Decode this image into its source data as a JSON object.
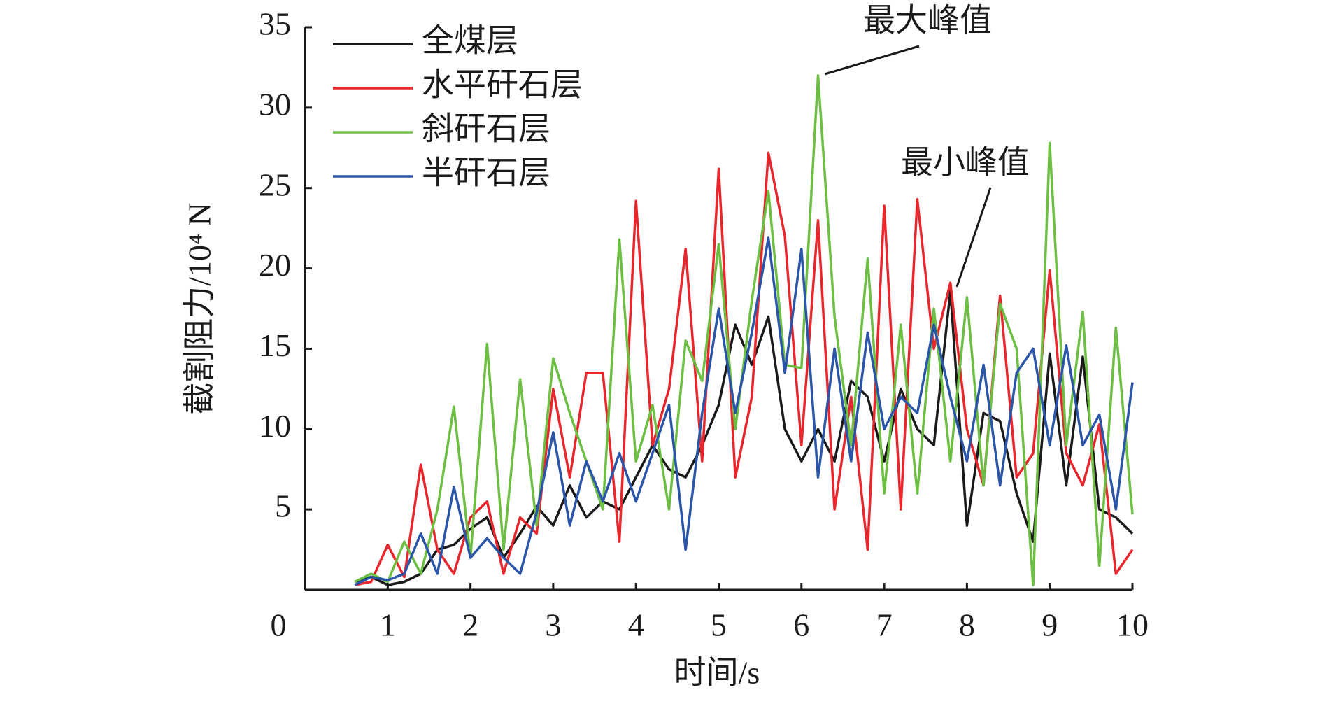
{
  "chart_data": {
    "type": "line",
    "xlabel": "时间/s",
    "ylabel": "截割阻力/10⁴ N",
    "xlim": [
      0,
      10
    ],
    "ylim": [
      0,
      35
    ],
    "xticks": [
      0,
      1,
      2,
      3,
      4,
      5,
      6,
      7,
      8,
      9,
      10
    ],
    "yticks": [
      5,
      10,
      15,
      20,
      25,
      30,
      35
    ],
    "legend": "upper left",
    "x": [
      0.6,
      0.8,
      1.0,
      1.2,
      1.4,
      1.6,
      1.8,
      2.0,
      2.2,
      2.4,
      2.6,
      2.8,
      3.0,
      3.2,
      3.4,
      3.6,
      3.8,
      4.0,
      4.2,
      4.4,
      4.6,
      4.8,
      5.0,
      5.2,
      5.4,
      5.6,
      5.8,
      6.0,
      6.2,
      6.4,
      6.6,
      6.8,
      7.0,
      7.2,
      7.4,
      7.6,
      7.8,
      8.0,
      8.2,
      8.4,
      8.6,
      8.8,
      9.0,
      9.2,
      9.4,
      9.6,
      9.8,
      10.0
    ],
    "series": [
      {
        "name": "全煤层",
        "color": "#1a1a1a",
        "values": [
          0.5,
          0.8,
          0.3,
          0.5,
          1.0,
          2.5,
          2.8,
          3.8,
          4.5,
          2.0,
          3.5,
          5.2,
          4.0,
          6.5,
          4.5,
          5.5,
          5.0,
          7.0,
          9.0,
          7.5,
          7.0,
          9.0,
          11.5,
          16.5,
          14.0,
          17.0,
          10.0,
          8.0,
          10.0,
          8.0,
          13.0,
          12.0,
          8.0,
          12.5,
          10.0,
          9.0,
          18.6,
          4.0,
          11.0,
          10.5,
          6.0,
          3.0,
          14.7,
          6.5,
          14.5,
          5.0,
          4.5,
          3.5
        ]
      },
      {
        "name": "水平矸石层",
        "color": "#e8262b",
        "values": [
          0.3,
          0.5,
          2.8,
          0.8,
          7.8,
          2.5,
          1.0,
          4.5,
          5.5,
          1.0,
          4.5,
          3.5,
          12.5,
          7.0,
          13.5,
          13.5,
          3.0,
          24.2,
          9.0,
          12.5,
          21.2,
          8.0,
          26.2,
          7.0,
          12.0,
          27.2,
          22.0,
          9.0,
          23.0,
          5.0,
          12.0,
          2.5,
          23.9,
          5.0,
          24.3,
          15.0,
          19.1,
          10.0,
          6.5,
          18.3,
          7.0,
          8.5,
          19.9,
          8.5,
          6.5,
          10.3,
          1.0,
          2.5
        ]
      },
      {
        "name": "斜矸石层",
        "color": "#6cbf43",
        "values": [
          0.5,
          1.0,
          0.5,
          3.0,
          1.0,
          5.0,
          11.4,
          2.0,
          15.3,
          2.5,
          13.1,
          4.0,
          14.4,
          11.0,
          8.0,
          5.0,
          21.8,
          8.0,
          11.5,
          5.0,
          15.5,
          13.0,
          21.5,
          10.0,
          18.0,
          24.8,
          14.0,
          13.8,
          32.0,
          17.0,
          9.0,
          20.6,
          6.0,
          16.5,
          6.0,
          17.5,
          8.0,
          18.2,
          6.5,
          17.8,
          15.0,
          0.3,
          27.8,
          9.0,
          17.3,
          1.5,
          16.3,
          4.7
        ]
      },
      {
        "name": "半矸石层",
        "color": "#2a55a8",
        "values": [
          0.3,
          0.8,
          0.6,
          1.0,
          3.5,
          1.0,
          6.4,
          2.0,
          3.2,
          2.0,
          1.0,
          4.8,
          9.8,
          4.0,
          8.0,
          5.5,
          8.5,
          5.5,
          8.5,
          11.5,
          2.5,
          11.0,
          17.5,
          11.0,
          16.0,
          21.9,
          13.5,
          21.2,
          7.0,
          15.0,
          8.0,
          16.0,
          10.0,
          12.0,
          11.0,
          16.5,
          12.0,
          8.0,
          14.0,
          6.5,
          13.5,
          15.0,
          9.0,
          15.2,
          9.0,
          10.9,
          5.0,
          12.9
        ]
      }
    ],
    "annotations": [
      {
        "text": "最大峰值"
      },
      {
        "text": "最小峰值"
      }
    ]
  }
}
